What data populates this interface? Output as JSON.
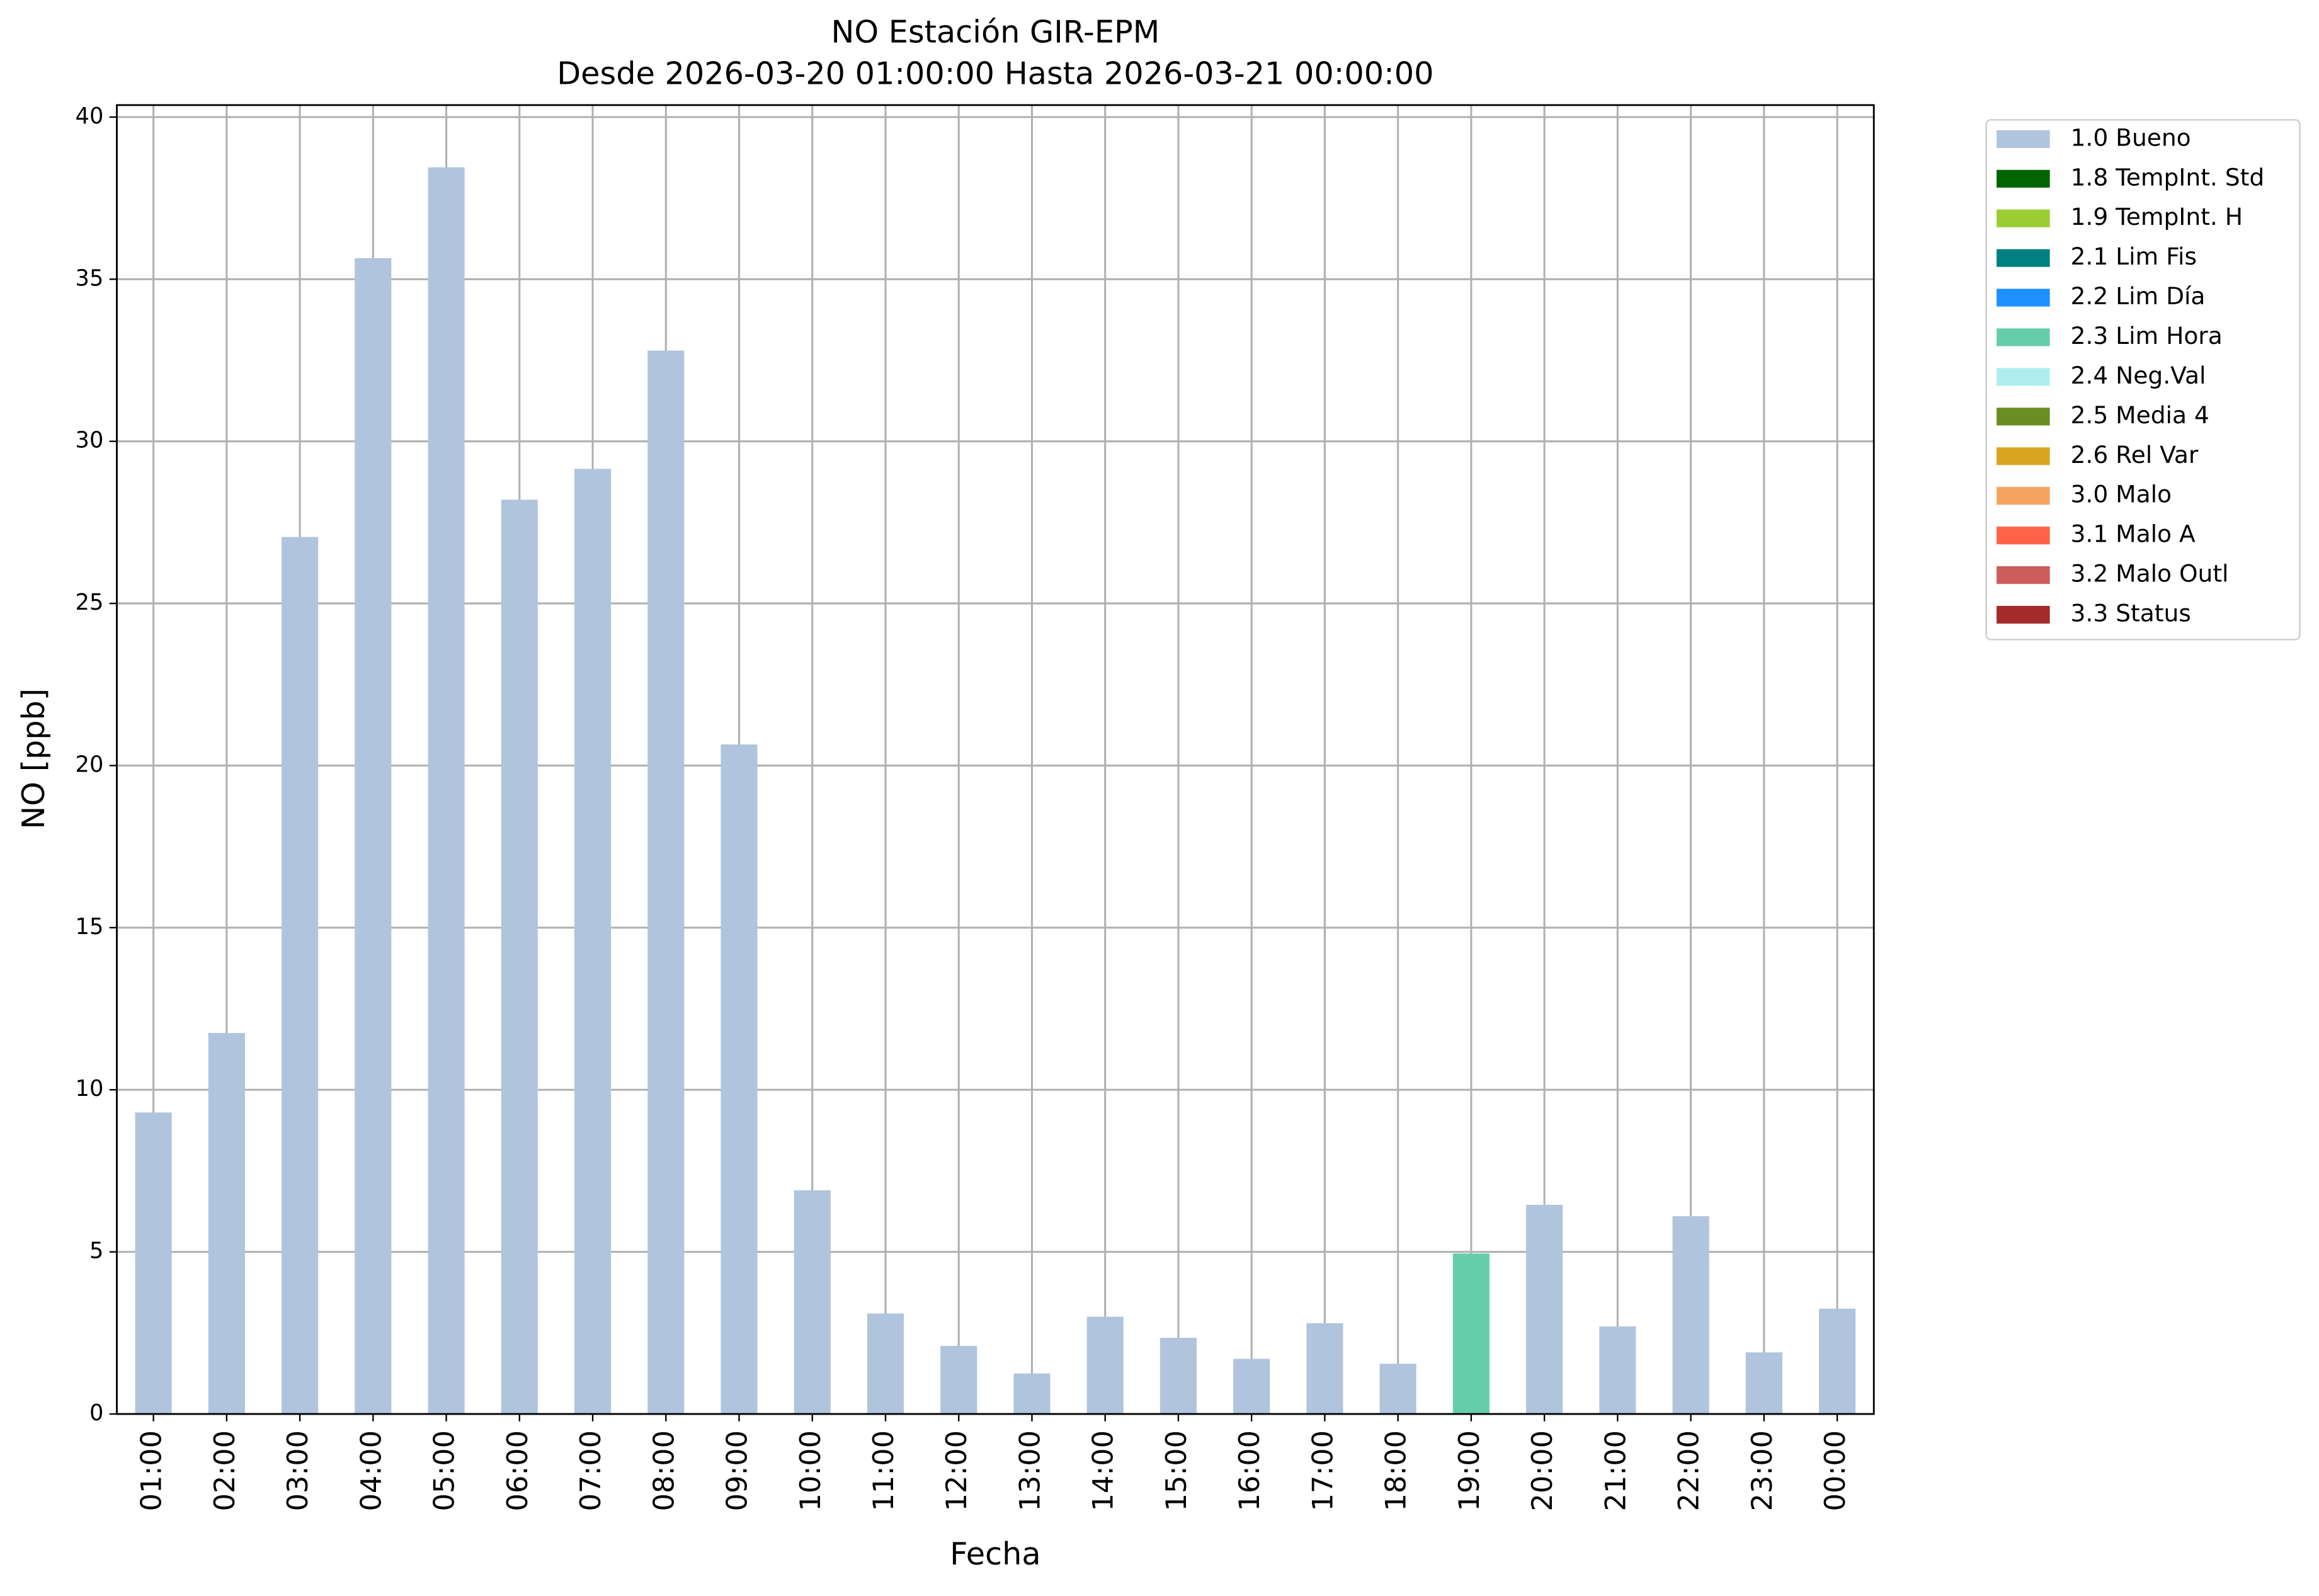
{
  "chart_data": {
    "type": "stacked_bar",
    "title": "NO Estación GIR-EPM",
    "subtitle": "Desde 2026-03-20 01:00:00 Hasta 2026-03-21 00:00:00",
    "x_label": "Fecha",
    "y_label": "NO [ppb]",
    "categories": [
      "01:00",
      "02:00",
      "03:00",
      "04:00",
      "05:00",
      "06:00",
      "07:00",
      "08:00",
      "09:00",
      "10:00",
      "11:00",
      "12:00",
      "13:00",
      "14:00",
      "15:00",
      "16:00",
      "17:00",
      "18:00",
      "19:00",
      "20:00",
      "21:00",
      "22:00",
      "23:00",
      "00:00"
    ],
    "series": [
      {
        "name": "1.0 Bueno",
        "color": "#b0c4de",
        "values": [
          9.3,
          11.75,
          27.05,
          35.65,
          38.45,
          28.2,
          29.15,
          32.8,
          20.65,
          6.9,
          3.1,
          2.1,
          1.25,
          3.0,
          2.35,
          1.7,
          2.8,
          1.55,
          null,
          6.45,
          2.7,
          6.1,
          1.9,
          3.25
        ]
      },
      {
        "name": "1.8 TempInt. Std",
        "color": "#006400",
        "values": [
          null,
          null,
          null,
          null,
          null,
          null,
          null,
          null,
          null,
          null,
          null,
          null,
          null,
          null,
          null,
          null,
          null,
          null,
          null,
          null,
          null,
          null,
          null,
          null
        ]
      },
      {
        "name": "1.9 TempInt. H",
        "color": "#9acd32",
        "values": [
          null,
          null,
          null,
          null,
          null,
          null,
          null,
          null,
          null,
          null,
          null,
          null,
          null,
          null,
          null,
          null,
          null,
          null,
          null,
          null,
          null,
          null,
          null,
          null
        ]
      },
      {
        "name": "2.1 Lim Fis",
        "color": "#008080",
        "values": [
          null,
          null,
          null,
          null,
          null,
          null,
          null,
          null,
          null,
          null,
          null,
          null,
          null,
          null,
          null,
          null,
          null,
          null,
          null,
          null,
          null,
          null,
          null,
          null
        ]
      },
      {
        "name": "2.2 Lim Día",
        "color": "#1e90ff",
        "values": [
          null,
          null,
          null,
          null,
          null,
          null,
          null,
          null,
          null,
          null,
          null,
          null,
          null,
          null,
          null,
          null,
          null,
          null,
          null,
          null,
          null,
          null,
          null,
          null
        ]
      },
      {
        "name": "2.3 Lim Hora",
        "color": "#66cdaa",
        "values": [
          null,
          null,
          null,
          null,
          null,
          null,
          null,
          null,
          null,
          null,
          null,
          null,
          null,
          null,
          null,
          null,
          null,
          null,
          4.95,
          null,
          null,
          null,
          null,
          null
        ]
      },
      {
        "name": "2.4 Neg.Val",
        "color": "#afeeee",
        "values": [
          null,
          null,
          null,
          null,
          null,
          null,
          null,
          null,
          null,
          null,
          null,
          null,
          null,
          null,
          null,
          null,
          null,
          null,
          null,
          null,
          null,
          null,
          null,
          null
        ]
      },
      {
        "name": "2.5 Media 4",
        "color": "#6b8e23",
        "values": [
          null,
          null,
          null,
          null,
          null,
          null,
          null,
          null,
          null,
          null,
          null,
          null,
          null,
          null,
          null,
          null,
          null,
          null,
          null,
          null,
          null,
          null,
          null,
          null
        ]
      },
      {
        "name": "2.6 Rel Var",
        "color": "#daa520",
        "values": [
          null,
          null,
          null,
          null,
          null,
          null,
          null,
          null,
          null,
          null,
          null,
          null,
          null,
          null,
          null,
          null,
          null,
          null,
          null,
          null,
          null,
          null,
          null,
          null
        ]
      },
      {
        "name": "3.0 Malo",
        "color": "#f4a460",
        "values": [
          null,
          null,
          null,
          null,
          null,
          null,
          null,
          null,
          null,
          null,
          null,
          null,
          null,
          null,
          null,
          null,
          null,
          null,
          null,
          null,
          null,
          null,
          null,
          null
        ]
      },
      {
        "name": "3.1 Malo A",
        "color": "#ff6347",
        "values": [
          null,
          null,
          null,
          null,
          null,
          null,
          null,
          null,
          null,
          null,
          null,
          null,
          null,
          null,
          null,
          null,
          null,
          null,
          null,
          null,
          null,
          null,
          null,
          null
        ]
      },
      {
        "name": "3.2 Malo Outl",
        "color": "#cd5c5c",
        "values": [
          null,
          null,
          null,
          null,
          null,
          null,
          null,
          null,
          null,
          null,
          null,
          null,
          null,
          null,
          null,
          null,
          null,
          null,
          null,
          null,
          null,
          null,
          null,
          null
        ]
      },
      {
        "name": "3.3 Status",
        "color": "#a52a2a",
        "values": [
          null,
          null,
          null,
          null,
          null,
          null,
          null,
          null,
          null,
          null,
          null,
          null,
          null,
          null,
          null,
          null,
          null,
          null,
          null,
          null,
          null,
          null,
          null,
          null
        ]
      }
    ],
    "ylim": [
      0,
      40.37
    ],
    "yticks": [
      0,
      5,
      10,
      15,
      20,
      25,
      30,
      35,
      40
    ],
    "grid": true,
    "legend": "outside right"
  }
}
